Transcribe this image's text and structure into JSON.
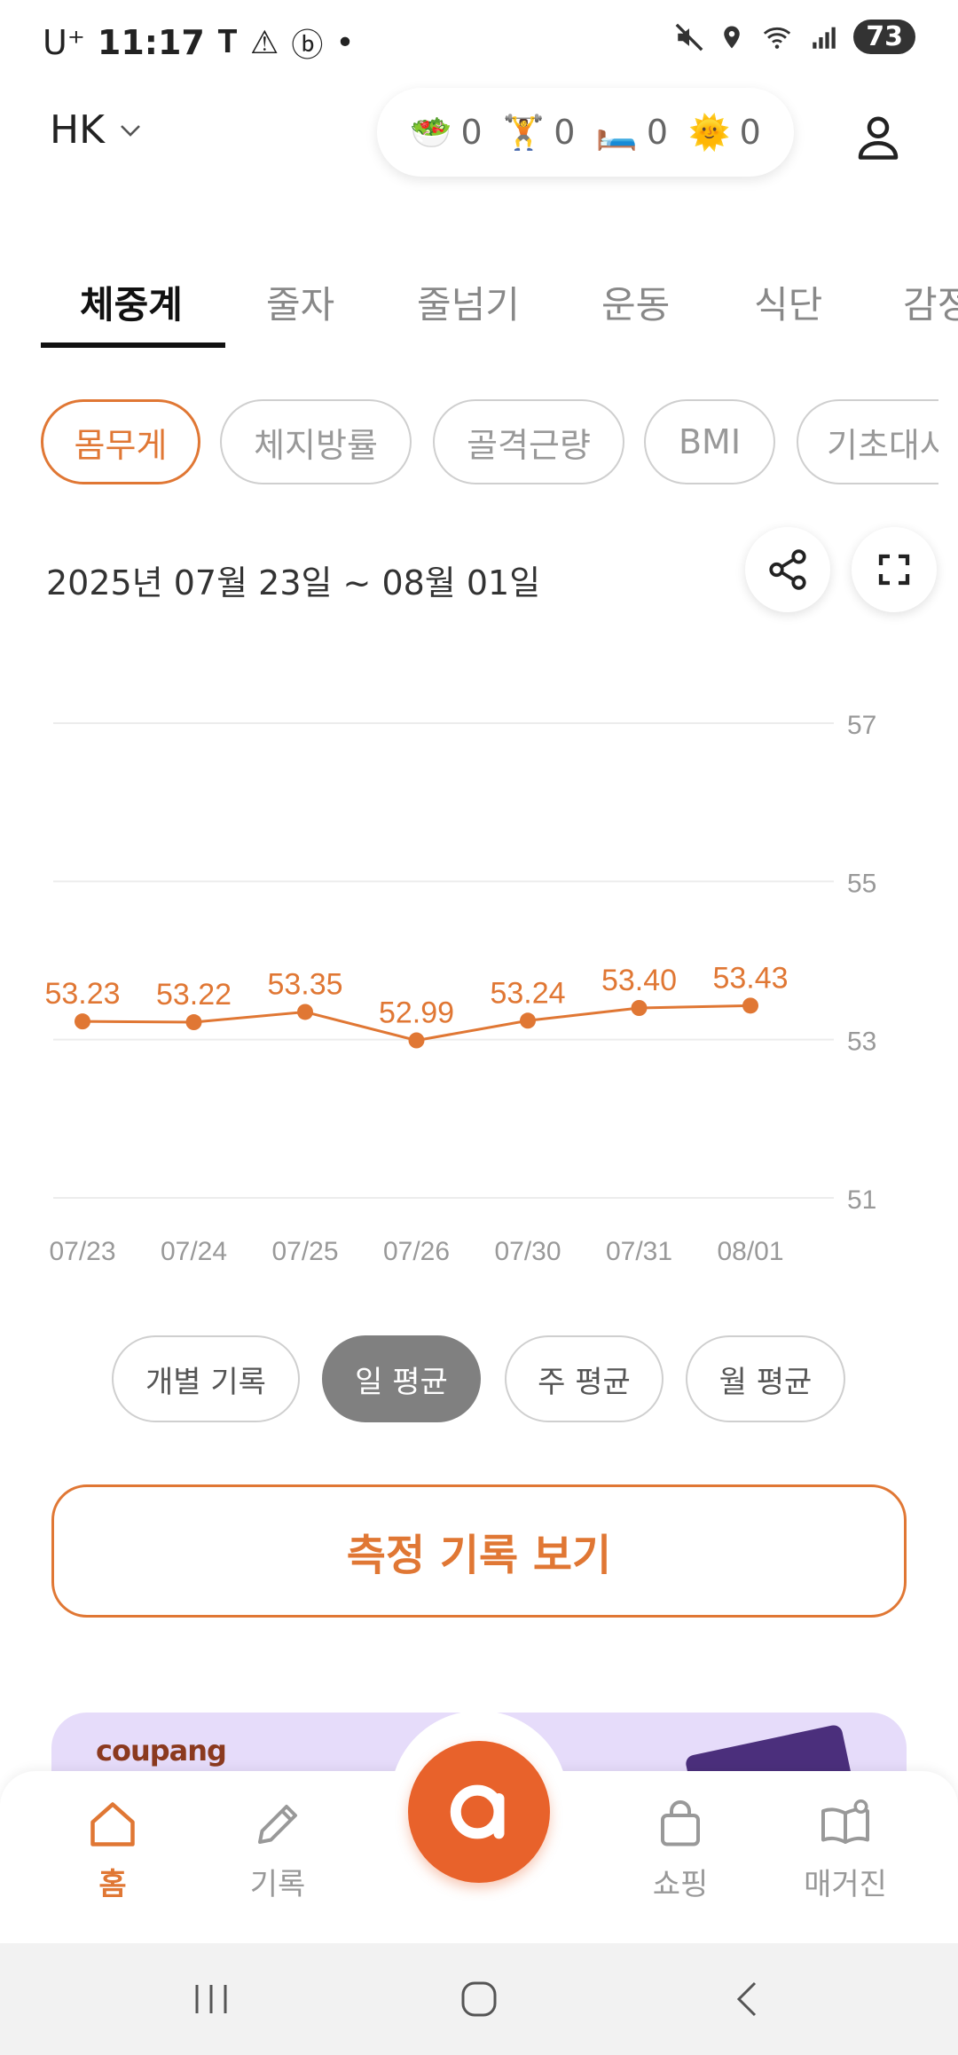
{
  "status_bar": {
    "carrier": "U⁺",
    "time": "11:17",
    "battery": "73"
  },
  "header": {
    "profile_name": "HK",
    "stats": [
      {
        "icon": "salad-icon",
        "emoji": "🥗",
        "value": "0"
      },
      {
        "icon": "weightlifter-icon",
        "emoji": "🏋️",
        "value": "0"
      },
      {
        "icon": "bed-icon",
        "emoji": "🛏️",
        "value": "0"
      },
      {
        "icon": "sun-icon",
        "emoji": "🌞",
        "value": "0"
      }
    ]
  },
  "tabs": [
    "체중계",
    "줄자",
    "줄넘기",
    "운동",
    "식단",
    "감정"
  ],
  "active_tab": 0,
  "chips": [
    "몸무게",
    "체지방률",
    "골격근량",
    "BMI",
    "기초대사량"
  ],
  "active_chip": 0,
  "date_range": "2025년 07월 23일 ~ 08월 01일",
  "chart_data": {
    "type": "line",
    "categories": [
      "07/23",
      "07/24",
      "07/25",
      "07/26",
      "07/30",
      "07/31",
      "08/01"
    ],
    "series": [
      {
        "values": [
          53.23,
          53.22,
          53.35,
          52.99,
          53.24,
          53.4,
          53.43
        ]
      }
    ],
    "data_labels": [
      "53.23",
      "53.22",
      "53.35",
      "52.99",
      "53.24",
      "53.40",
      "53.43"
    ],
    "y_ticks": [
      "57",
      "55",
      "53",
      "51"
    ],
    "ylim": [
      51,
      57
    ],
    "grid": true,
    "y_axis_position": "right",
    "color": "#e07734"
  },
  "avg_options": [
    "개별 기록",
    "일 평균",
    "주 평균",
    "월 평균"
  ],
  "active_avg": 1,
  "cta_label": "측정 기록 보기",
  "banner": {
    "brand": "coupang"
  },
  "bottom_nav": [
    {
      "label": "홈",
      "icon": "home-icon",
      "active": true
    },
    {
      "label": "기록",
      "icon": "pencil-icon",
      "active": false
    },
    {
      "label": "쇼핑",
      "icon": "shopping-bag-icon",
      "active": false
    },
    {
      "label": "매거진",
      "icon": "magazine-icon",
      "active": false
    }
  ],
  "colors": {
    "accent": "#e07734",
    "fab": "#e8622b",
    "inactive": "#999999"
  }
}
